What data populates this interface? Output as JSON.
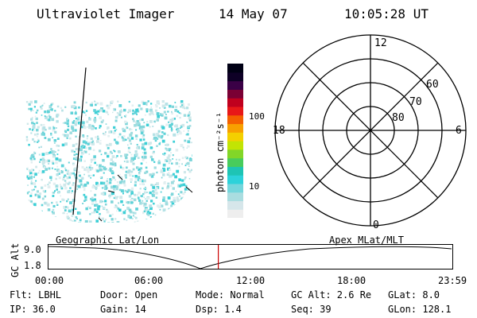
{
  "header": {
    "title": "Ultraviolet Imager",
    "date": "14 May 07",
    "time": "10:05:28 UT"
  },
  "colorbar": {
    "label": "photon cm⁻²s⁻¹",
    "ticks": [
      "100",
      "10"
    ],
    "colors": [
      "#eeeeee",
      "#d6e6ea",
      "#aadde0",
      "#74d6dc",
      "#2cd2da",
      "#1ec4b4",
      "#48cc5c",
      "#82d628",
      "#c2e404",
      "#f4d000",
      "#f8a000",
      "#f46000",
      "#e81818",
      "#c0001e",
      "#7a0034",
      "#3a0046",
      "#0e0026",
      "#000014"
    ]
  },
  "polar_plot": {
    "mlt_labels": {
      "top": "12",
      "bottom": "0",
      "left": "18",
      "right": "6"
    },
    "lat_labels": [
      "60",
      "70",
      "80"
    ]
  },
  "orbit_plot": {
    "left_caption": "Geographic Lat/Lon",
    "right_caption": "Apex MLat/MLT",
    "y_axis_label": "GC Alt",
    "y_ticks": [
      "9.0",
      "1.8"
    ],
    "x_ticks": [
      "00:00",
      "06:00",
      "12:00",
      "18:00",
      "23:59"
    ],
    "current_time_fraction": 0.4204,
    "marker_color": "#cc0000"
  },
  "status": {
    "row1": {
      "filter": "Flt: LBHL",
      "door": "Door: Open",
      "mode": "Mode: Normal",
      "gc_alt": "GC Alt: 2.6 Re",
      "glat": "GLat:  8.0"
    },
    "row2": {
      "ip": "IP: 36.0",
      "gain": "Gain: 14",
      "dsp": "Dsp:    1.4",
      "seq": "Seq: 39",
      "glon": "GLon: 128.1"
    }
  }
}
